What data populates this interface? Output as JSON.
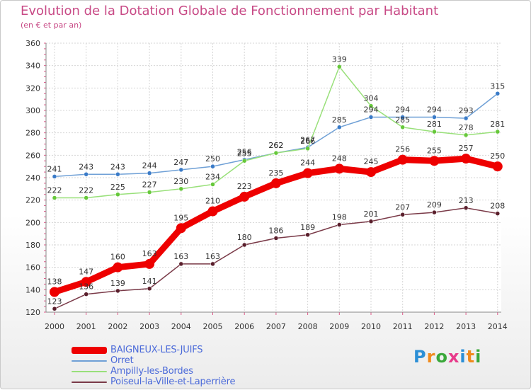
{
  "chart_data": {
    "type": "line",
    "title": "Evolution de la Dotation Globale de Fonctionnement par Habitant",
    "subtitle": "(en € et par an)",
    "xlabel": "",
    "ylabel": "",
    "ylim": [
      120,
      360
    ],
    "yticks": [
      120,
      140,
      160,
      180,
      200,
      220,
      240,
      260,
      280,
      300,
      320,
      340,
      360
    ],
    "grid": true,
    "x": [
      "2000",
      "2001",
      "2002",
      "2003",
      "2004",
      "2005",
      "2006",
      "2007",
      "2008",
      "2009",
      "2010",
      "2011",
      "2012",
      "2013",
      "2014"
    ],
    "series": [
      {
        "name": "BAIGNEUX-LES-JUIFS",
        "color": "#ee0000",
        "highlight": true,
        "values": [
          138,
          147,
          160,
          163,
          195,
          210,
          223,
          235,
          244,
          248,
          245,
          256,
          255,
          257,
          250
        ]
      },
      {
        "name": "Orret",
        "color": "#6fa0d6",
        "marker_color": "#3a7bc8",
        "values": [
          241,
          243,
          243,
          244,
          247,
          250,
          256,
          262,
          267,
          285,
          294,
          294,
          294,
          293,
          315
        ]
      },
      {
        "name": "Ampilly-les-Bordes",
        "color": "#99e07a",
        "marker_color": "#66c83a",
        "values": [
          222,
          222,
          225,
          227,
          230,
          234,
          255,
          262,
          266,
          339,
          304,
          285,
          281,
          278,
          281
        ]
      },
      {
        "name": "Poiseul-la-Ville-et-Laperrière",
        "color": "#7a3a48",
        "marker_color": "#5a1f2c",
        "values": [
          123,
          136,
          139,
          141,
          163,
          163,
          180,
          186,
          189,
          198,
          201,
          207,
          209,
          213,
          208
        ]
      }
    ],
    "legend_position": "bottom-left"
  },
  "brand": {
    "letters": [
      "P",
      "r",
      "o",
      "x",
      "i",
      "t",
      "i"
    ],
    "colors": [
      "#2c8fd6",
      "#f08a1c",
      "#3aa83a",
      "#e83a8a",
      "#2c8fd6",
      "#f08a1c",
      "#3aa83a"
    ]
  }
}
